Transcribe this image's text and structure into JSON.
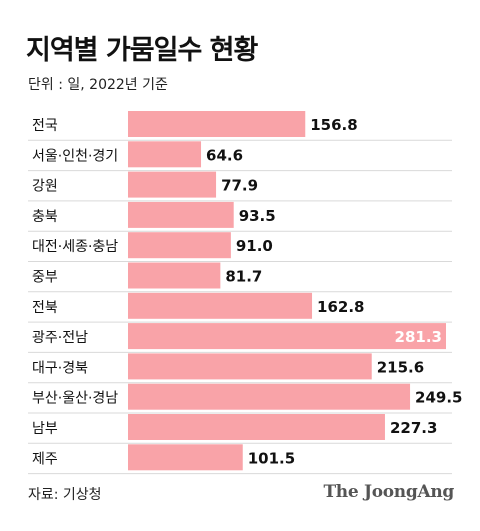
{
  "title": "지역별 가뭄일수 현황",
  "subtitle": "단위 : 일, 2022년 기준",
  "source": "자료: 기상청",
  "logo": "The JoongAng",
  "colors": {
    "bar": "#f9a3a8",
    "label_box": "#ffffff",
    "grid": "#d9d9d9",
    "highlight_text": "#ffffff"
  },
  "chart_data": {
    "type": "bar",
    "orientation": "horizontal",
    "title": "지역별 가뭄일수 현황",
    "unit": "일",
    "categories": [
      "전국",
      "서울·인천·경기",
      "강원",
      "충북",
      "대전·세종·충남",
      "중부",
      "전북",
      "광주·전남",
      "대구·경북",
      "부산·울산·경남",
      "남부",
      "제주"
    ],
    "values": [
      156.8,
      64.6,
      77.9,
      93.5,
      91.0,
      81.7,
      162.8,
      281.3,
      215.6,
      249.5,
      227.3,
      101.5
    ],
    "value_labels": [
      "156.8",
      "64.6",
      "77.9",
      "93.5",
      "91.0",
      "81.7",
      "162.8",
      "281.3",
      "215.6",
      "249.5",
      "227.3",
      "101.5"
    ],
    "highlight_index": 7,
    "xlim": [
      0,
      281.3
    ]
  }
}
